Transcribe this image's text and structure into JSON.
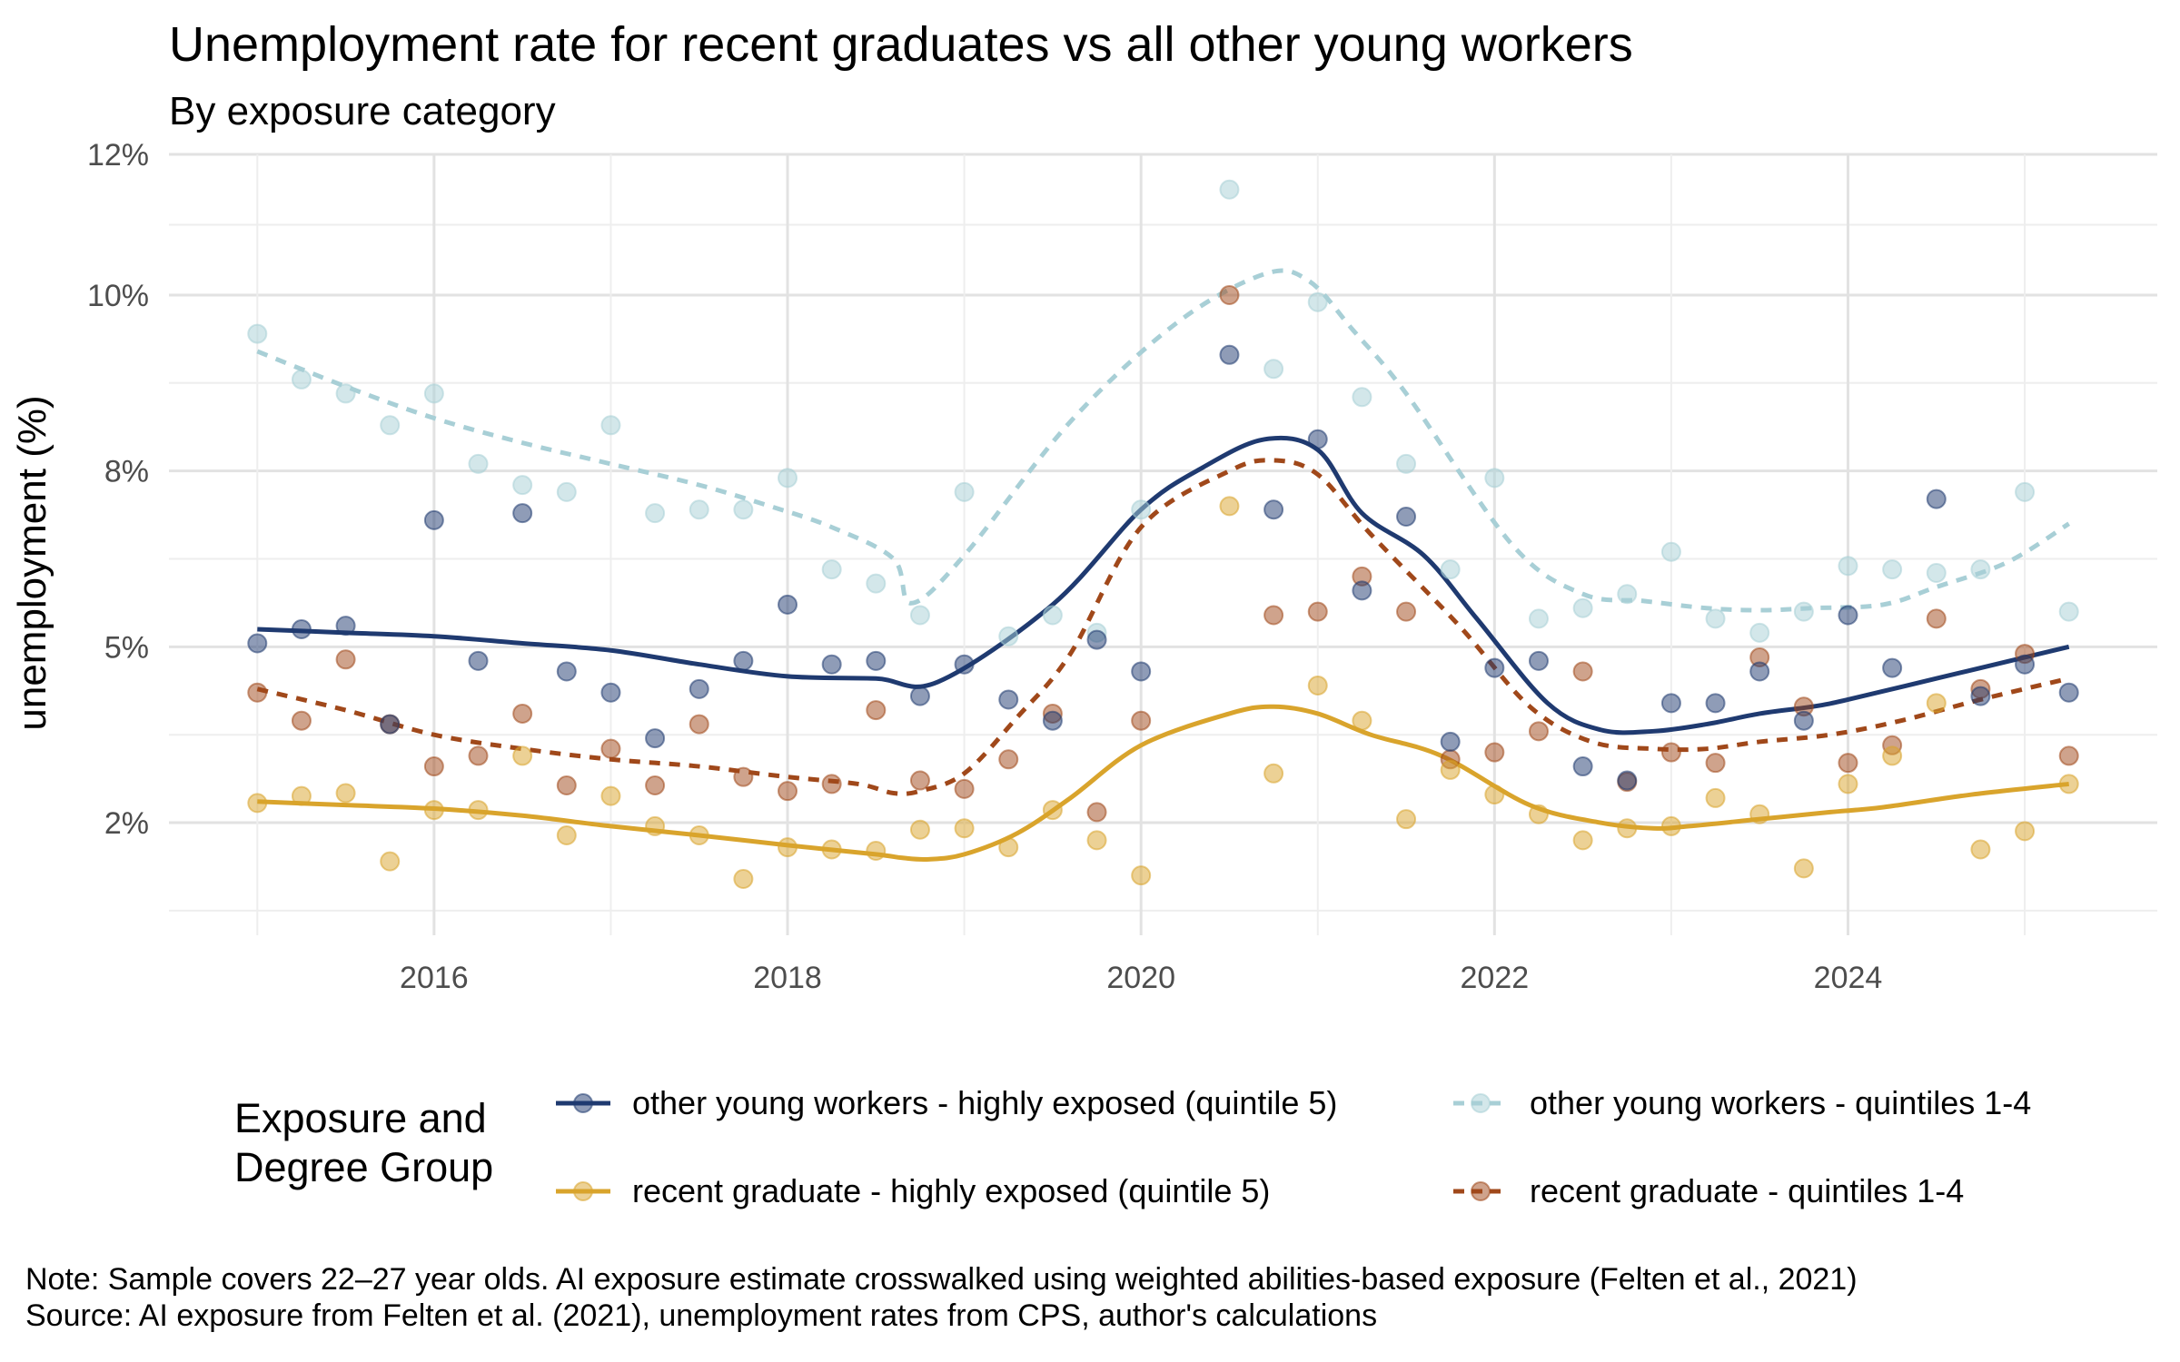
{
  "title": "Unemployment rate for recent graduates vs all other young workers",
  "subtitle": "By exposure category",
  "legend": {
    "title": "Exposure and\nDegree Group",
    "items": [
      {
        "label": "other young workers - highly exposed (quintile 5)",
        "series": 0
      },
      {
        "label": "other young workers - quintiles 1-4",
        "series": 1
      },
      {
        "label": "recent graduate - highly exposed (quintile 5)",
        "series": 2
      },
      {
        "label": "recent graduate - quintiles 1-4",
        "series": 3
      }
    ]
  },
  "notes": {
    "note": "Note: Sample covers 22–27 year olds. AI exposure estimate crosswalked using weighted abilities-based exposure (Felten et al., 2021)",
    "source": "Source: AI exposure from Felten et al. (2021), unemployment rates from CPS, author's calculations"
  },
  "chart_data": {
    "type": "scatter",
    "title": "Unemployment rate for recent graduates vs all other young workers",
    "subtitle": "By exposure category",
    "xlabel": "",
    "ylabel": "unemployment (%)",
    "xlim": [
      2014.5,
      2025.75
    ],
    "ylim": [
      0.9,
      12.0
    ],
    "x_ticks": [
      2016,
      2018,
      2020,
      2022,
      2024
    ],
    "y_ticks": [
      2.5,
      5,
      7.5,
      10,
      12
    ],
    "y_tick_labels": [
      "2%",
      "5%",
      "8%",
      "10%",
      "12%"
    ],
    "grid": true,
    "legend_position": "bottom",
    "x": [
      2015.0,
      2015.25,
      2015.5,
      2015.75,
      2016.0,
      2016.25,
      2016.5,
      2016.75,
      2017.0,
      2017.25,
      2017.5,
      2017.75,
      2018.0,
      2018.25,
      2018.5,
      2018.75,
      2019.0,
      2019.25,
      2019.5,
      2019.75,
      2020.0,
      2020.5,
      2020.75,
      2021.0,
      2021.25,
      2021.5,
      2021.75,
      2022.0,
      2022.25,
      2022.5,
      2022.75,
      2023.0,
      2023.25,
      2023.5,
      2023.75,
      2024.0,
      2024.25,
      2024.5,
      2024.75,
      2025.0,
      2025.25
    ],
    "series": [
      {
        "name": "other young workers - highly exposed (quintile 5)",
        "color": "#1f3a70",
        "line_style": "solid",
        "points": [
          5.05,
          5.25,
          5.3,
          3.9,
          6.8,
          4.8,
          6.9,
          4.65,
          4.35,
          3.7,
          4.4,
          4.8,
          5.6,
          4.75,
          4.8,
          4.3,
          4.75,
          4.25,
          3.95,
          5.1,
          4.65,
          9.15,
          6.95,
          7.95,
          5.8,
          6.85,
          3.65,
          4.7,
          4.8,
          3.3,
          3.1,
          4.2,
          4.2,
          4.65,
          3.95,
          5.45,
          4.7,
          7.1,
          4.3,
          4.75,
          4.35
        ],
        "smooth": [
          5.25,
          5.2,
          5.15,
          5.05,
          4.95,
          4.75,
          4.58,
          4.55,
          4.5,
          5.6,
          6.95,
          7.55,
          7.95,
          7.8,
          6.9,
          6.3,
          5.4,
          4.2,
          3.82,
          3.8,
          3.9,
          4.05,
          4.15,
          4.25,
          4.55,
          4.85,
          5.0
        ],
        "smooth_x": [
          2015.0,
          2015.5,
          2016.0,
          2016.5,
          2017.0,
          2017.5,
          2018.0,
          2018.5,
          2018.85,
          2019.5,
          2020.0,
          2020.35,
          2020.7,
          2021.0,
          2021.25,
          2021.6,
          2021.9,
          2022.3,
          2022.6,
          2022.9,
          2023.2,
          2023.5,
          2023.8,
          2024.0,
          2024.5,
          2025.0,
          2025.25
        ]
      },
      {
        "name": "other young workers - quintiles 1-4",
        "color": "#a8cfd6",
        "line_style": "dashed",
        "points": [
          9.45,
          8.8,
          8.6,
          8.15,
          8.6,
          7.6,
          7.3,
          7.2,
          8.15,
          6.9,
          6.95,
          6.95,
          7.4,
          6.1,
          5.9,
          5.45,
          7.2,
          5.15,
          5.45,
          5.2,
          6.95,
          11.5,
          8.95,
          9.9,
          8.55,
          7.6,
          6.1,
          7.4,
          5.4,
          5.55,
          5.75,
          6.35,
          5.4,
          5.2,
          5.5,
          6.15,
          6.1,
          6.05,
          6.1,
          7.2,
          5.5
        ],
        "smooth": [
          9.2,
          8.7,
          8.25,
          7.9,
          7.6,
          7.3,
          7.0,
          6.7,
          6.25,
          5.62,
          6.3,
          8.2,
          9.6,
          10.3,
          10.2,
          9.5,
          8.6,
          6.45,
          5.75,
          5.65,
          5.55,
          5.52,
          5.55,
          5.6,
          5.85,
          6.2,
          6.75
        ],
        "smooth_x": [
          2015.0,
          2015.5,
          2016.0,
          2016.5,
          2017.0,
          2017.5,
          2017.9,
          2018.25,
          2018.6,
          2018.7,
          2019.0,
          2019.6,
          2020.2,
          2020.7,
          2020.95,
          2021.2,
          2021.5,
          2022.1,
          2022.5,
          2022.85,
          2023.2,
          2023.5,
          2023.8,
          2024.2,
          2024.5,
          2024.9,
          2025.25
        ]
      },
      {
        "name": "recent graduate - highly exposed (quintile 5)",
        "color": "#d9a42c",
        "line_style": "solid",
        "points": [
          2.78,
          2.88,
          2.92,
          1.95,
          2.68,
          2.68,
          3.45,
          2.32,
          2.88,
          2.45,
          2.32,
          1.7,
          2.15,
          2.12,
          2.1,
          2.4,
          2.42,
          2.15,
          2.68,
          2.25,
          1.75,
          7.0,
          3.2,
          4.45,
          3.95,
          2.55,
          3.25,
          2.9,
          2.62,
          2.25,
          2.42,
          2.45,
          2.85,
          2.62,
          1.85,
          3.05,
          3.45,
          4.2,
          2.12,
          2.38,
          3.05
        ],
        "smooth": [
          2.8,
          2.75,
          2.7,
          2.6,
          2.45,
          2.32,
          2.18,
          2.05,
          2.0,
          1.98,
          2.05,
          2.35,
          2.85,
          3.6,
          4.05,
          4.15,
          4.05,
          3.75,
          3.45,
          2.75,
          2.5,
          2.42,
          2.45,
          2.55,
          2.65,
          2.72,
          2.9,
          3.05
        ],
        "smooth_x": [
          2015.0,
          2015.5,
          2016.0,
          2016.5,
          2017.0,
          2017.5,
          2018.0,
          2018.5,
          2018.65,
          2018.8,
          2019.0,
          2019.3,
          2019.6,
          2020.0,
          2020.5,
          2020.75,
          2021.0,
          2021.3,
          2021.7,
          2022.2,
          2022.6,
          2022.9,
          2023.1,
          2023.5,
          2023.9,
          2024.2,
          2024.7,
          2025.25
        ]
      },
      {
        "name": "recent graduate - quintiles 1-4",
        "color": "#a0481a",
        "line_style": "dashed",
        "points": [
          4.35,
          3.95,
          4.82,
          3.9,
          3.3,
          3.45,
          4.05,
          3.03,
          3.55,
          3.03,
          3.9,
          3.15,
          2.95,
          3.05,
          4.1,
          3.1,
          2.98,
          3.4,
          4.05,
          2.65,
          3.95,
          10.0,
          5.45,
          5.5,
          6.0,
          5.5,
          3.4,
          3.5,
          3.8,
          4.65,
          3.08,
          3.5,
          3.35,
          4.85,
          4.15,
          3.35,
          3.6,
          5.4,
          4.4,
          4.9,
          3.45
        ],
        "smooth": [
          4.4,
          4.1,
          3.75,
          3.55,
          3.4,
          3.3,
          3.15,
          3.05,
          2.92,
          2.95,
          3.2,
          4.0,
          4.9,
          6.7,
          7.5,
          7.65,
          7.45,
          6.6,
          5.3,
          4.15,
          3.65,
          3.55,
          3.55,
          3.65,
          3.75,
          3.95,
          4.25,
          4.55
        ],
        "smooth_x": [
          2015.0,
          2015.5,
          2016.0,
          2016.5,
          2017.0,
          2017.5,
          2018.0,
          2018.4,
          2018.6,
          2018.75,
          2019.0,
          2019.3,
          2019.6,
          2020.0,
          2020.5,
          2020.75,
          2021.0,
          2021.3,
          2021.8,
          2022.2,
          2022.55,
          2022.9,
          2023.2,
          2023.5,
          2023.9,
          2024.3,
          2024.75,
          2025.25
        ]
      }
    ]
  }
}
